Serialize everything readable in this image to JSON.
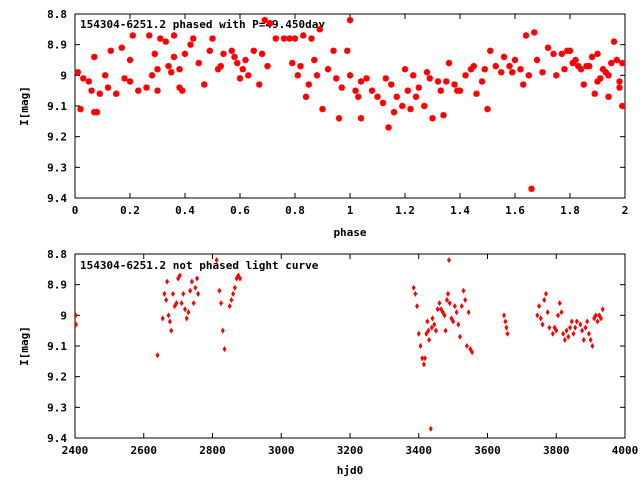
{
  "point_color": "#ff0000",
  "chart_data": [
    {
      "type": "scatter",
      "title": "154304-6251.2 phased with P=49.450day",
      "xlabel": "phase",
      "ylabel": "I[mag]",
      "xlim": [
        0,
        2
      ],
      "ylim": [
        8.8,
        9.4
      ],
      "y_inverted": true,
      "xticks": [
        "0",
        "0.2",
        "0.4",
        "0.6",
        "0.8",
        "1",
        "1.2",
        "1.4",
        "1.6",
        "1.8",
        "2"
      ],
      "yticks": [
        "8.8",
        "8.9",
        "9",
        "9.1",
        "9.2",
        "9.3",
        "9.4"
      ],
      "points": [
        [
          0.01,
          8.99
        ],
        [
          0.02,
          9.11
        ],
        [
          0.03,
          9.01
        ],
        [
          0.05,
          9.02
        ],
        [
          0.06,
          9.05
        ],
        [
          0.07,
          8.94
        ],
        [
          0.07,
          9.12
        ],
        [
          0.08,
          9.12
        ],
        [
          0.09,
          9.06
        ],
        [
          0.11,
          9.0
        ],
        [
          0.12,
          9.04
        ],
        [
          0.13,
          8.92
        ],
        [
          0.15,
          9.06
        ],
        [
          0.17,
          8.91
        ],
        [
          0.18,
          9.01
        ],
        [
          0.2,
          9.02
        ],
        [
          0.2,
          8.95
        ],
        [
          0.21,
          8.87
        ],
        [
          0.23,
          9.05
        ],
        [
          0.26,
          9.04
        ],
        [
          0.27,
          8.87
        ],
        [
          0.28,
          9.0
        ],
        [
          0.29,
          8.93
        ],
        [
          0.3,
          8.98
        ],
        [
          0.3,
          9.05
        ],
        [
          0.31,
          8.88
        ],
        [
          0.33,
          8.89
        ],
        [
          0.34,
          8.97
        ],
        [
          0.35,
          8.99
        ],
        [
          0.36,
          8.94
        ],
        [
          0.36,
          8.87
        ],
        [
          0.38,
          9.04
        ],
        [
          0.38,
          8.98
        ],
        [
          0.39,
          9.05
        ],
        [
          0.4,
          8.93
        ],
        [
          0.42,
          8.9
        ],
        [
          0.43,
          8.88
        ],
        [
          0.45,
          8.96
        ],
        [
          0.47,
          9.03
        ],
        [
          0.49,
          8.92
        ],
        [
          0.5,
          8.88
        ],
        [
          0.52,
          8.98
        ],
        [
          0.53,
          8.97
        ],
        [
          0.54,
          8.93
        ],
        [
          0.57,
          8.92
        ],
        [
          0.58,
          8.94
        ],
        [
          0.59,
          8.96
        ],
        [
          0.6,
          9.01
        ],
        [
          0.61,
          8.98
        ],
        [
          0.62,
          8.95
        ],
        [
          0.63,
          9.0
        ],
        [
          0.65,
          8.92
        ],
        [
          0.67,
          9.03
        ],
        [
          0.68,
          8.93
        ],
        [
          0.69,
          8.82
        ],
        [
          0.7,
          8.97
        ],
        [
          0.71,
          8.83
        ],
        [
          0.73,
          8.88
        ],
        [
          0.76,
          8.88
        ],
        [
          0.78,
          8.88
        ],
        [
          0.79,
          8.96
        ],
        [
          0.8,
          8.88
        ],
        [
          0.81,
          9.0
        ],
        [
          0.82,
          8.97
        ],
        [
          0.83,
          8.87
        ],
        [
          0.84,
          9.07
        ],
        [
          0.85,
          9.03
        ],
        [
          0.86,
          8.88
        ],
        [
          0.87,
          8.95
        ],
        [
          0.88,
          9.0
        ],
        [
          0.89,
          8.85
        ],
        [
          0.9,
          9.11
        ],
        [
          0.92,
          8.98
        ],
        [
          0.94,
          8.92
        ],
        [
          0.95,
          9.01
        ],
        [
          0.96,
          9.14
        ],
        [
          0.97,
          9.04
        ],
        [
          0.99,
          8.92
        ],
        [
          1.0,
          9.0
        ],
        [
          1.0,
          8.82
        ],
        [
          1.02,
          9.05
        ],
        [
          1.03,
          9.07
        ],
        [
          1.04,
          9.02
        ],
        [
          1.04,
          9.14
        ],
        [
          1.06,
          9.01
        ],
        [
          1.08,
          9.05
        ],
        [
          1.1,
          9.07
        ],
        [
          1.12,
          9.09
        ],
        [
          1.13,
          9.01
        ],
        [
          1.14,
          9.17
        ],
        [
          1.15,
          9.03
        ],
        [
          1.16,
          9.12
        ],
        [
          1.17,
          9.07
        ],
        [
          1.19,
          9.1
        ],
        [
          1.2,
          8.98
        ],
        [
          1.21,
          9.05
        ],
        [
          1.22,
          9.11
        ],
        [
          1.23,
          9.0
        ],
        [
          1.24,
          9.07
        ],
        [
          1.25,
          9.04
        ],
        [
          1.27,
          9.1
        ],
        [
          1.28,
          8.99
        ],
        [
          1.29,
          9.01
        ],
        [
          1.3,
          9.14
        ],
        [
          1.32,
          9.02
        ],
        [
          1.33,
          9.05
        ],
        [
          1.34,
          9.13
        ],
        [
          1.35,
          9.02
        ],
        [
          1.36,
          8.96
        ],
        [
          1.38,
          9.03
        ],
        [
          1.39,
          9.05
        ],
        [
          1.4,
          9.05
        ],
        [
          1.42,
          9.0
        ],
        [
          1.44,
          8.98
        ],
        [
          1.45,
          8.97
        ],
        [
          1.46,
          9.06
        ],
        [
          1.48,
          9.02
        ],
        [
          1.49,
          8.98
        ],
        [
          1.5,
          9.11
        ],
        [
          1.51,
          8.92
        ],
        [
          1.53,
          8.97
        ],
        [
          1.55,
          8.99
        ],
        [
          1.56,
          8.94
        ],
        [
          1.58,
          8.97
        ],
        [
          1.59,
          8.99
        ],
        [
          1.6,
          8.95
        ],
        [
          1.62,
          8.98
        ],
        [
          1.63,
          9.03
        ],
        [
          1.64,
          8.87
        ],
        [
          1.65,
          9.0
        ],
        [
          1.66,
          9.37
        ],
        [
          1.67,
          8.86
        ],
        [
          1.68,
          8.95
        ],
        [
          1.7,
          8.99
        ],
        [
          1.72,
          8.91
        ],
        [
          1.74,
          8.93
        ],
        [
          1.75,
          9.0
        ],
        [
          1.77,
          8.93
        ],
        [
          1.78,
          8.98
        ],
        [
          1.79,
          8.92
        ],
        [
          1.8,
          8.92
        ],
        [
          1.81,
          8.96
        ],
        [
          1.82,
          8.95
        ],
        [
          1.83,
          8.97
        ],
        [
          1.84,
          8.98
        ],
        [
          1.85,
          9.03
        ],
        [
          1.86,
          8.97
        ],
        [
          1.87,
          8.97
        ],
        [
          1.88,
          8.94
        ],
        [
          1.89,
          9.06
        ],
        [
          1.9,
          9.02
        ],
        [
          1.9,
          8.93
        ],
        [
          1.91,
          9.01
        ],
        [
          1.92,
          8.98
        ],
        [
          1.93,
          8.99
        ],
        [
          1.94,
          9.07
        ],
        [
          1.95,
          8.96
        ],
        [
          1.96,
          8.89
        ],
        [
          1.97,
          8.95
        ],
        [
          1.98,
          9.02
        ],
        [
          1.98,
          9.04
        ],
        [
          1.99,
          8.96
        ],
        [
          1.99,
          9.1
        ],
        [
          1.94,
          9.0
        ]
      ]
    },
    {
      "type": "scatter",
      "title": "154304-6251.2 not phased light curve",
      "xlabel": "hjd0",
      "ylabel": "I[mag]",
      "xlim": [
        2400,
        4000
      ],
      "ylim": [
        8.8,
        9.4
      ],
      "y_inverted": true,
      "xticks": [
        "2400",
        "2600",
        "2800",
        "3000",
        "3200",
        "3400",
        "3600",
        "3800",
        "4000"
      ],
      "yticks": [
        "8.8",
        "8.9",
        "9",
        "9.1",
        "9.2",
        "9.3",
        "9.4"
      ],
      "points": [
        [
          2402,
          9.0
        ],
        [
          2403,
          9.03
        ],
        [
          2640,
          9.13
        ],
        [
          2655,
          9.01
        ],
        [
          2660,
          8.93
        ],
        [
          2665,
          8.95
        ],
        [
          2668,
          8.89
        ],
        [
          2672,
          9.0
        ],
        [
          2676,
          9.02
        ],
        [
          2680,
          9.05
        ],
        [
          2685,
          8.93
        ],
        [
          2690,
          8.97
        ],
        [
          2695,
          8.96
        ],
        [
          2700,
          8.88
        ],
        [
          2705,
          8.87
        ],
        [
          2710,
          8.96
        ],
        [
          2715,
          8.93
        ],
        [
          2720,
          8.98
        ],
        [
          2725,
          9.01
        ],
        [
          2730,
          8.99
        ],
        [
          2735,
          8.92
        ],
        [
          2740,
          8.89
        ],
        [
          2745,
          8.96
        ],
        [
          2750,
          8.91
        ],
        [
          2755,
          8.88
        ],
        [
          2758,
          8.93
        ],
        [
          2812,
          8.82
        ],
        [
          2820,
          8.92
        ],
        [
          2825,
          8.96
        ],
        [
          2830,
          9.05
        ],
        [
          2835,
          9.11
        ],
        [
          2850,
          8.97
        ],
        [
          2855,
          8.95
        ],
        [
          2860,
          8.93
        ],
        [
          2865,
          8.91
        ],
        [
          2870,
          8.88
        ],
        [
          2875,
          8.87
        ],
        [
          2880,
          8.88
        ],
        [
          3385,
          8.91
        ],
        [
          3390,
          8.93
        ],
        [
          3395,
          8.97
        ],
        [
          3400,
          9.06
        ],
        [
          3405,
          9.1
        ],
        [
          3410,
          9.14
        ],
        [
          3415,
          9.16
        ],
        [
          3418,
          9.14
        ],
        [
          3422,
          9.06
        ],
        [
          3425,
          9.02
        ],
        [
          3428,
          9.05
        ],
        [
          3430,
          9.08
        ],
        [
          3435,
          9.37
        ],
        [
          3438,
          9.04
        ],
        [
          3440,
          9.01
        ],
        [
          3445,
          9.03
        ],
        [
          3450,
          9.05
        ],
        [
          3455,
          8.98
        ],
        [
          3460,
          8.96
        ],
        [
          3465,
          8.98
        ],
        [
          3470,
          8.99
        ],
        [
          3475,
          9.0
        ],
        [
          3478,
          9.05
        ],
        [
          3482,
          8.95
        ],
        [
          3485,
          8.93
        ],
        [
          3488,
          8.82
        ],
        [
          3490,
          8.96
        ],
        [
          3495,
          9.01
        ],
        [
          3500,
          9.02
        ],
        [
          3505,
          8.97
        ],
        [
          3510,
          8.99
        ],
        [
          3515,
          9.03
        ],
        [
          3520,
          9.07
        ],
        [
          3525,
          8.97
        ],
        [
          3530,
          8.92
        ],
        [
          3535,
          8.95
        ],
        [
          3540,
          9.1
        ],
        [
          3545,
          8.99
        ],
        [
          3550,
          9.11
        ],
        [
          3555,
          9.12
        ],
        [
          3648,
          9.0
        ],
        [
          3652,
          9.02
        ],
        [
          3655,
          9.04
        ],
        [
          3658,
          9.06
        ],
        [
          3745,
          9.0
        ],
        [
          3750,
          8.97
        ],
        [
          3755,
          9.01
        ],
        [
          3760,
          9.03
        ],
        [
          3765,
          8.95
        ],
        [
          3770,
          8.93
        ],
        [
          3775,
          8.99
        ],
        [
          3780,
          9.04
        ],
        [
          3790,
          9.06
        ],
        [
          3795,
          9.04
        ],
        [
          3800,
          9.05
        ],
        [
          3805,
          9.0
        ],
        [
          3810,
          8.96
        ],
        [
          3815,
          8.99
        ],
        [
          3820,
          9.06
        ],
        [
          3825,
          9.08
        ],
        [
          3830,
          9.05
        ],
        [
          3835,
          9.07
        ],
        [
          3840,
          9.04
        ],
        [
          3845,
          9.02
        ],
        [
          3850,
          9.06
        ],
        [
          3855,
          9.04
        ],
        [
          3860,
          9.02
        ],
        [
          3870,
          9.03
        ],
        [
          3875,
          9.05
        ],
        [
          3880,
          9.08
        ],
        [
          3885,
          9.04
        ],
        [
          3890,
          9.02
        ],
        [
          3895,
          9.06
        ],
        [
          3900,
          9.08
        ],
        [
          3905,
          9.1
        ],
        [
          3910,
          9.01
        ],
        [
          3915,
          9.0
        ],
        [
          3920,
          9.02
        ],
        [
          3925,
          9.0
        ],
        [
          3930,
          9.01
        ],
        [
          3935,
          8.98
        ]
      ]
    }
  ]
}
